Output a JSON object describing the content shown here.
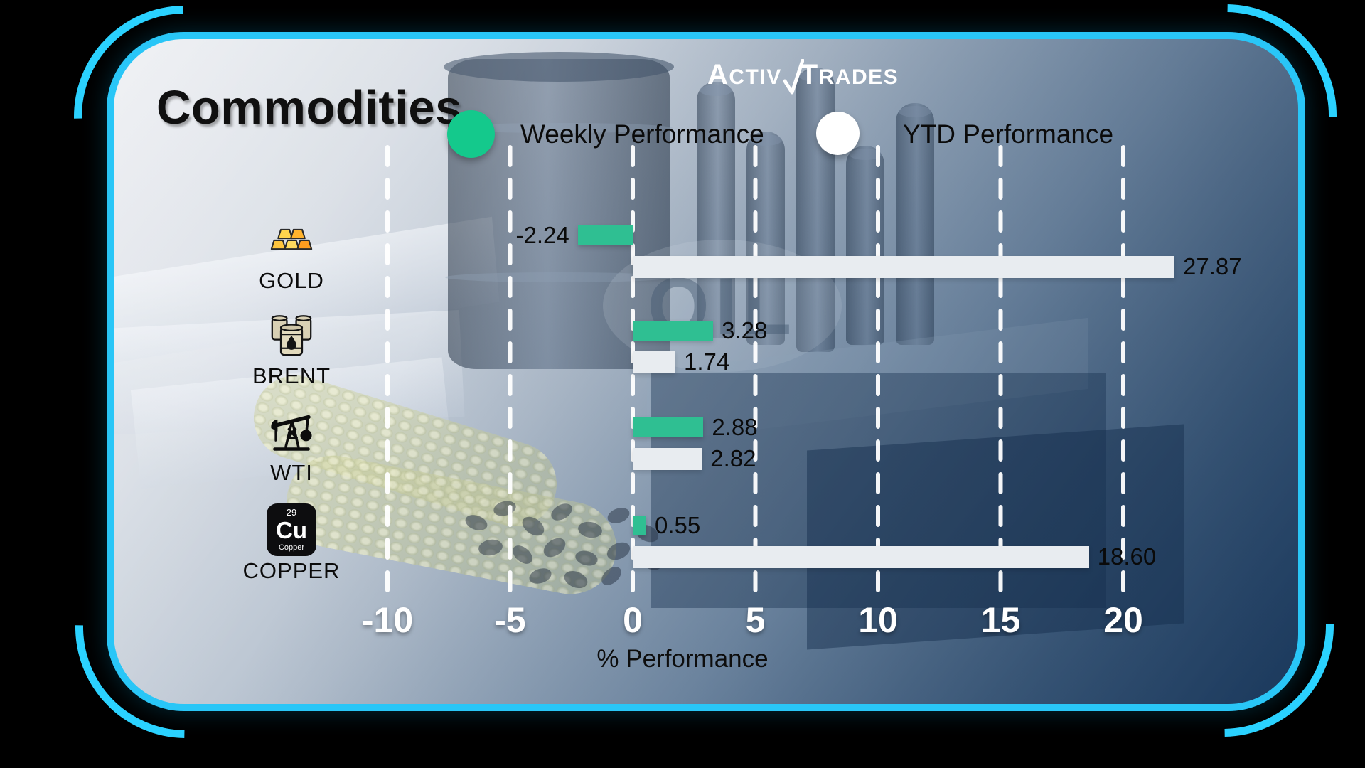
{
  "brand": {
    "logo_left": "Activ",
    "logo_right": "Trades"
  },
  "header": {
    "title": "Commodities"
  },
  "legend": [
    {
      "label": "Weekly Performance",
      "color": "#14c98c",
      "swatch": "green-dot"
    },
    {
      "label": "YTD Performance",
      "color": "#ffffff",
      "swatch": "white-dot"
    }
  ],
  "background": {
    "oil_watermark": "OIL"
  },
  "copper_icon": {
    "number": "29",
    "symbol": "Cu",
    "name": "Copper"
  },
  "chart_data": {
    "type": "bar",
    "orientation": "horizontal",
    "title": "Commodities",
    "xlabel": "% Performance",
    "x_ticks": [
      -10,
      -5,
      0,
      5,
      10,
      15,
      20
    ],
    "xlim": [
      -12,
      22.5
    ],
    "grid": "vertical-dashed-white",
    "legend_position": "top",
    "categories": [
      "GOLD",
      "BRENT",
      "WTI",
      "COPPER"
    ],
    "category_icons": [
      "gold-bars-icon",
      "oil-barrels-icon",
      "pumpjack-icon",
      "copper-element-icon"
    ],
    "series": [
      {
        "name": "Weekly Performance",
        "color": "#2fbf92",
        "values": [
          -2.24,
          3.28,
          2.88,
          0.55
        ],
        "labels": [
          "-2.24",
          "3.28",
          "2.88",
          "0.55"
        ]
      },
      {
        "name": "YTD Performance",
        "color": "#e8ecf0",
        "values": [
          27.87,
          1.74,
          2.82,
          18.6
        ],
        "labels": [
          "27.87",
          "1.74",
          "2.82",
          "18.60"
        ]
      }
    ]
  }
}
